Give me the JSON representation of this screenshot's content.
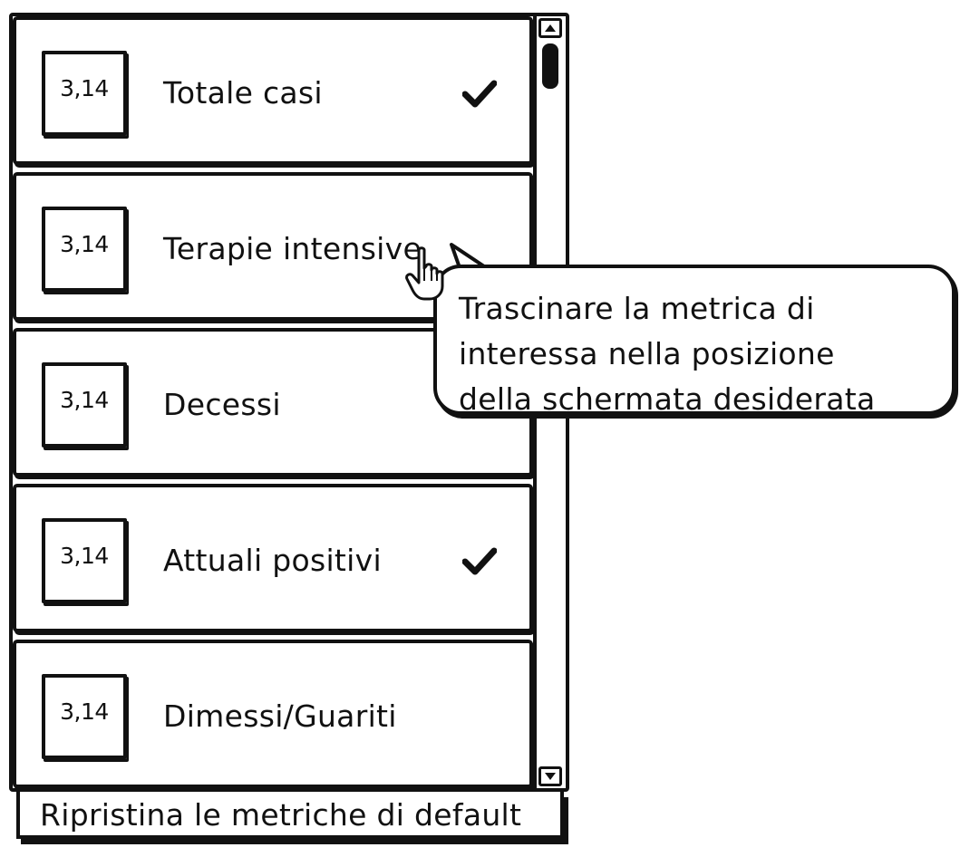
{
  "metrics": {
    "items": [
      {
        "value": "3,14",
        "label": "Totale casi",
        "checked": true
      },
      {
        "value": "3,14",
        "label": "Terapie intensive",
        "checked": false
      },
      {
        "value": "3,14",
        "label": "Decessi",
        "checked": false
      },
      {
        "value": "3,14",
        "label": "Attuali positivi",
        "checked": true
      },
      {
        "value": "3,14",
        "label": "Dimessi/Guariti",
        "checked": false
      }
    ]
  },
  "reset": {
    "label": "Ripristina le metriche di default"
  },
  "tooltip": {
    "text": "Trascinare la metrica di\ninteressa nella posizione\ndella schermata desiderata"
  },
  "icons": {
    "check": "check-icon",
    "cursor": "hand-pointer-icon",
    "scroll_up": "arrow-up-icon",
    "scroll_down": "arrow-down-icon"
  }
}
